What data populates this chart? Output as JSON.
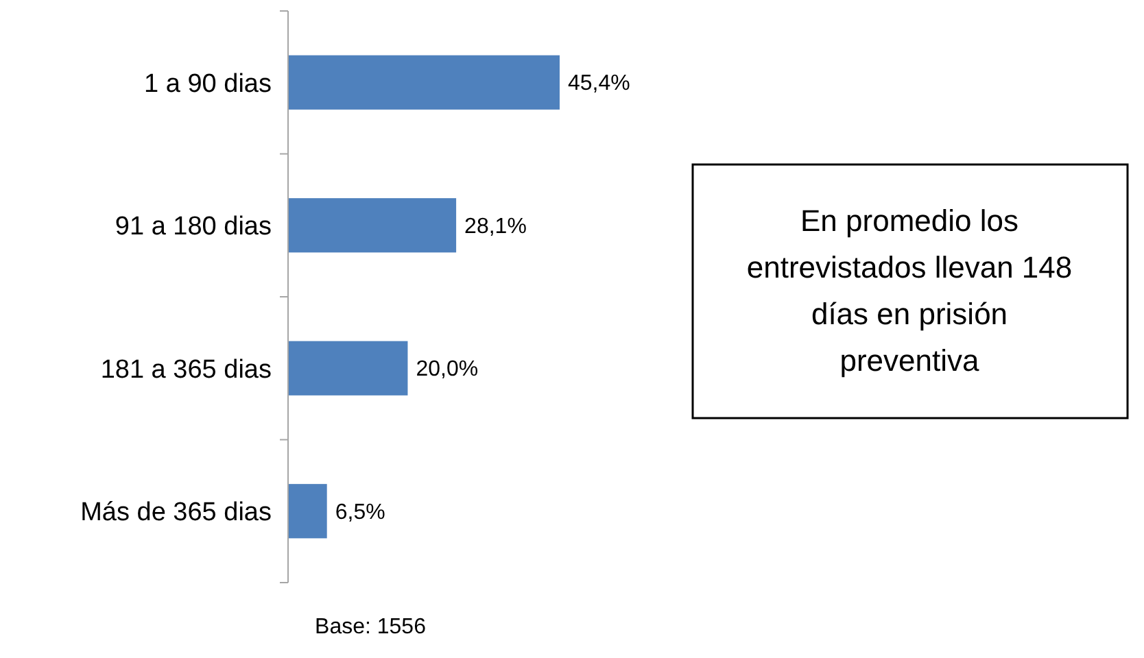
{
  "chart_data": {
    "type": "bar",
    "orientation": "horizontal",
    "relative": false,
    "categories": [
      "1 a 90 dias",
      "91 a 180 dias",
      "181 a 365 dias",
      "Más de 365 dias"
    ],
    "values": [
      45.4,
      28.1,
      20.0,
      6.5
    ],
    "value_labels": [
      "45,4%",
      "28,1%",
      "20,0%",
      "6,5%"
    ],
    "color": "#4f81bd",
    "annotations": [
      "En promedio los entrevistados llevan 148 días en prisión preventiva",
      "Base: 1556"
    ]
  }
}
